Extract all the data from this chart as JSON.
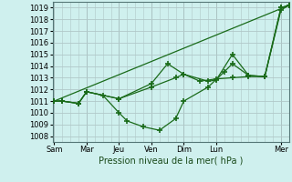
{
  "xlabel": "Pression niveau de la mer( hPa )",
  "bg_color": "#cff0ee",
  "grid_color": "#b0c8c8",
  "line_color": "#1a6b1a",
  "ylim": [
    1007.5,
    1019.5
  ],
  "yticks": [
    1008,
    1009,
    1010,
    1011,
    1012,
    1013,
    1014,
    1015,
    1016,
    1017,
    1018,
    1019
  ],
  "day_labels": [
    "Sam",
    "Mar",
    "Jeu",
    "Ven",
    "Dim",
    "Lun",
    "Mer"
  ],
  "day_positions": [
    0,
    2,
    4,
    6,
    8,
    10,
    14
  ],
  "xlim": [
    -0.1,
    14.5
  ],
  "series": [
    {
      "x": [
        0,
        14.5
      ],
      "y": [
        1011,
        1019.2
      ]
    },
    {
      "x": [
        0,
        0.5,
        1.5,
        2.0,
        3.0,
        4.0,
        4.5,
        5.5,
        6.5,
        7.5,
        8.0,
        9.5,
        10.5,
        11.0,
        12.0,
        13.0,
        14.0,
        14.5
      ],
      "y": [
        1011,
        1011.0,
        1010.8,
        1011.8,
        1011.5,
        1010.0,
        1009.3,
        1008.8,
        1008.5,
        1009.5,
        1011.0,
        1012.2,
        1013.5,
        1014.2,
        1013.2,
        1013.1,
        1018.8,
        1019.2
      ]
    },
    {
      "x": [
        0,
        0.5,
        1.5,
        2.0,
        4.0,
        6.0,
        7.5,
        8.0,
        9.5,
        10.0,
        11.0,
        12.0,
        13.0,
        14.0,
        14.5
      ],
      "y": [
        1011,
        1011.0,
        1010.8,
        1011.8,
        1011.2,
        1012.2,
        1013.0,
        1013.3,
        1012.7,
        1012.8,
        1015.0,
        1013.2,
        1013.1,
        1019.0,
        1019.2
      ]
    },
    {
      "x": [
        0,
        0.5,
        1.5,
        2.0,
        4.0,
        6.0,
        7.0,
        8.0,
        9.0,
        10.0,
        11.0,
        12.0,
        13.0,
        14.0,
        14.5
      ],
      "y": [
        1011,
        1011.0,
        1010.8,
        1011.8,
        1011.2,
        1012.5,
        1014.2,
        1013.3,
        1012.7,
        1012.9,
        1013.0,
        1013.1,
        1013.1,
        1019.0,
        1019.2
      ]
    }
  ]
}
